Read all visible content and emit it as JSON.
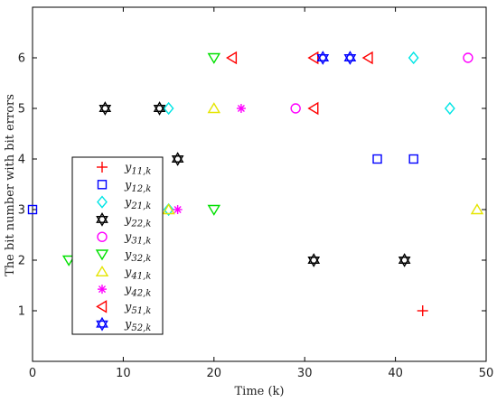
{
  "chart_data": {
    "type": "scatter",
    "title": "",
    "xlabel": "Time (k)",
    "ylabel": "The bit number with bit errors",
    "xlim": [
      0,
      50
    ],
    "ylim": [
      0,
      7
    ],
    "xticks": [
      0,
      10,
      20,
      30,
      40,
      50
    ],
    "yticks": [
      1,
      2,
      3,
      4,
      5,
      6
    ],
    "grid": false,
    "legend_position": "left",
    "series": [
      {
        "name": "y11,k",
        "marker": "plus",
        "color": "#ff0000",
        "points": [
          [
            43,
            1
          ]
        ]
      },
      {
        "name": "y12,k",
        "marker": "square",
        "color": "#0000ff",
        "points": [
          [
            0,
            3
          ],
          [
            38,
            4
          ],
          [
            42,
            4
          ]
        ]
      },
      {
        "name": "y21,k",
        "marker": "diamond",
        "color": "#00e5e5",
        "points": [
          [
            15,
            3
          ],
          [
            15,
            5
          ],
          [
            42,
            6
          ],
          [
            46,
            5
          ]
        ]
      },
      {
        "name": "y22,k",
        "marker": "hexagram",
        "color": "#000000",
        "points": [
          [
            8,
            5
          ],
          [
            14,
            5
          ],
          [
            16,
            4
          ],
          [
            31,
            2
          ],
          [
            41,
            2
          ]
        ]
      },
      {
        "name": "y31,k",
        "marker": "circle",
        "color": "#ff00ff",
        "points": [
          [
            29,
            5
          ],
          [
            48,
            6
          ]
        ]
      },
      {
        "name": "y32,k",
        "marker": "triangle-down",
        "color": "#00e000",
        "points": [
          [
            4,
            2
          ],
          [
            20,
            3
          ],
          [
            20,
            6
          ]
        ]
      },
      {
        "name": "y41,k",
        "marker": "triangle-up",
        "color": "#e5e500",
        "points": [
          [
            15,
            3
          ],
          [
            20,
            5
          ],
          [
            49,
            3
          ]
        ]
      },
      {
        "name": "y42,k",
        "marker": "asterisk",
        "color": "#ff00ff",
        "points": [
          [
            16,
            3
          ],
          [
            23,
            5
          ]
        ]
      },
      {
        "name": "y51,k",
        "marker": "triangle-left",
        "color": "#ff0000",
        "points": [
          [
            22,
            6
          ],
          [
            31,
            5
          ],
          [
            31,
            6
          ],
          [
            37,
            6
          ]
        ]
      },
      {
        "name": "y52,k",
        "marker": "hexagram",
        "color": "#0000ff",
        "points": [
          [
            32,
            6
          ],
          [
            35,
            6
          ]
        ]
      }
    ]
  }
}
